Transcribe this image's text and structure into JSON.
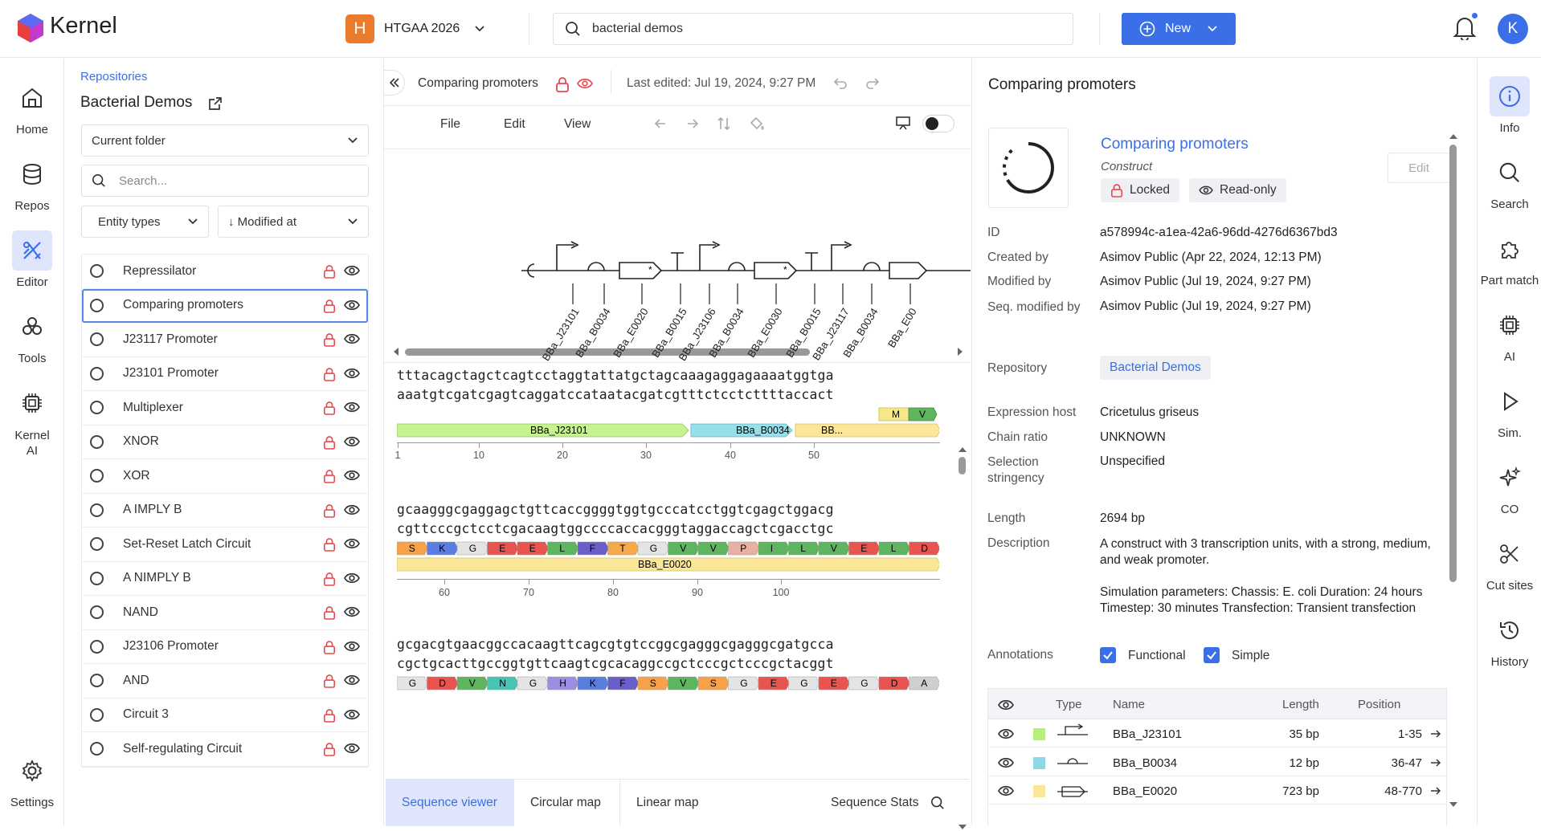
{
  "brand": {
    "name": "Kernel"
  },
  "org": {
    "initial": "H",
    "name": "HTGAA 2026"
  },
  "search": {
    "value": "bacterial demos"
  },
  "new_button": {
    "label": "New"
  },
  "user": {
    "initial": "K"
  },
  "left_nav": [
    {
      "label": "Home"
    },
    {
      "label": "Repos"
    },
    {
      "label": "Editor"
    },
    {
      "label": "Tools"
    },
    {
      "label": "Kernel\nAI"
    },
    {
      "label": "Settings"
    }
  ],
  "sidebar": {
    "breadcrumb": "Repositories",
    "title": "Bacterial Demos",
    "folder_select": "Current folder",
    "search_placeholder": "Search...",
    "entity_filter": "Entity types",
    "sort_filter": "↓ Modified at",
    "items": [
      "Repressilator",
      "Comparing promoters",
      "J23117 Promoter",
      "J23101 Promoter",
      "Multiplexer",
      "XNOR",
      "XOR",
      "A IMPLY B",
      "Set-Reset Latch Circuit",
      "A NIMPLY B",
      "NAND",
      "J23106 Promoter",
      "AND",
      "Circuit 3",
      "Self-regulating Circuit"
    ]
  },
  "doc": {
    "title": "Comparing promoters",
    "last_edited": "Last edited: Jul 19, 2024, 9:27 PM",
    "menus": [
      "File",
      "Edit",
      "View"
    ]
  },
  "map_labels": [
    "BBa_J23101",
    "BBa_B0034",
    "BBa_E0020",
    "BBa_B0015",
    "BBa_J23106",
    "BBa_B0034",
    "BBa_E0030",
    "BBa_B0015",
    "BBa_J23117",
    "BBa_B0034",
    "BBa_E00"
  ],
  "sequence": {
    "rows": [
      {
        "top": "tttacagctagctcagtcctaggtattatgctagcaaagaggagaaaatggtga",
        "bottom": "aaatgtcgatcgagtcaggatccataatacgatcgtttctcctcttttaccact",
        "features": [
          "BBa_J23101",
          "BBa_B0034",
          "BB..."
        ],
        "aa": [
          "M",
          "V"
        ],
        "ticks": [
          "1",
          "10",
          "20",
          "30",
          "40",
          "50"
        ]
      },
      {
        "top": "gcaagggcgaggagctgttcaccggggtggtgcccatcctggtcgagctggacg",
        "bottom": "cgttcccgctcctcgacaagtggccccaccacgggtaggaccagctcgacctgc",
        "features": [
          "BBa_E0020"
        ],
        "aa": [
          "S",
          "K",
          "G",
          "E",
          "E",
          "L",
          "F",
          "T",
          "G",
          "V",
          "V",
          "P",
          "I",
          "L",
          "V",
          "E",
          "L",
          "D"
        ],
        "ticks": [
          "60",
          "70",
          "80",
          "90",
          "100"
        ]
      },
      {
        "top": "gcgacgtgaacggccacaagttcagcgtgtccggcgagggcgagggcgatgcca",
        "bottom": "cgctgcacttgccggtgttcaagtcgcacaggccgctcccgctcccgctacggt",
        "aa": [
          "G",
          "D",
          "V",
          "N",
          "G",
          "H",
          "K",
          "F",
          "S",
          "V",
          "S",
          "G",
          "E",
          "G",
          "E",
          "G",
          "D",
          "A"
        ]
      }
    ]
  },
  "bottom_tabs": [
    "Sequence viewer",
    "Circular map",
    "Linear map"
  ],
  "seq_stats": "Sequence Stats",
  "details": {
    "header": "Comparing promoters",
    "name": "Comparing promoters",
    "type": "Construct",
    "locked": "Locked",
    "readonly": "Read-only",
    "edit": "Edit",
    "fields": [
      {
        "label": "ID",
        "value": "a578994c-a1ea-42a6-96dd-4276d6367bd3"
      },
      {
        "label": "Created by",
        "value": "Asimov Public (Apr 22, 2024, 12:13 PM)"
      },
      {
        "label": "Modified by",
        "value": "Asimov Public (Jul 19, 2024, 9:27 PM)"
      },
      {
        "label": "Seq. modified by",
        "value": "Asimov Public (Jul 19, 2024, 9:27 PM)"
      }
    ],
    "repository_label": "Repository",
    "repository": "Bacterial Demos",
    "host_label": "Expression host",
    "host": "Cricetulus griseus",
    "chain_label": "Chain ratio",
    "chain": "UNKNOWN",
    "stringency_label": "Selection stringency",
    "stringency": "Unspecified",
    "length_label": "Length",
    "length": "2694 bp",
    "desc_label": "Description",
    "desc": "A construct with 3 transcription units, with a strong, medium, and weak promoter.",
    "sim": "Simulation parameters: Chassis: E. coli Duration: 24 hours Timestep: 30 minutes Transfection: Transient transfection",
    "annotations_label": "Annotations",
    "functional": "Functional",
    "simple": "Simple",
    "table_headers": [
      "Type",
      "Name",
      "Length",
      "Position"
    ],
    "table_rows": [
      {
        "name": "BBa_J23101",
        "length": "35 bp",
        "position": "1-35",
        "color": "#b5f07a"
      },
      {
        "name": "BBa_B0034",
        "length": "12 bp",
        "position": "36-47",
        "color": "#8dd8e8"
      },
      {
        "name": "BBa_E0020",
        "length": "723 bp",
        "position": "48-770",
        "color": "#fbe79a"
      }
    ]
  },
  "right_nav": [
    {
      "label": "Info"
    },
    {
      "label": "Search"
    },
    {
      "label": "Part match"
    },
    {
      "label": "AI"
    },
    {
      "label": "Sim."
    },
    {
      "label": "CO"
    },
    {
      "label": "Cut sites"
    },
    {
      "label": "History"
    }
  ]
}
